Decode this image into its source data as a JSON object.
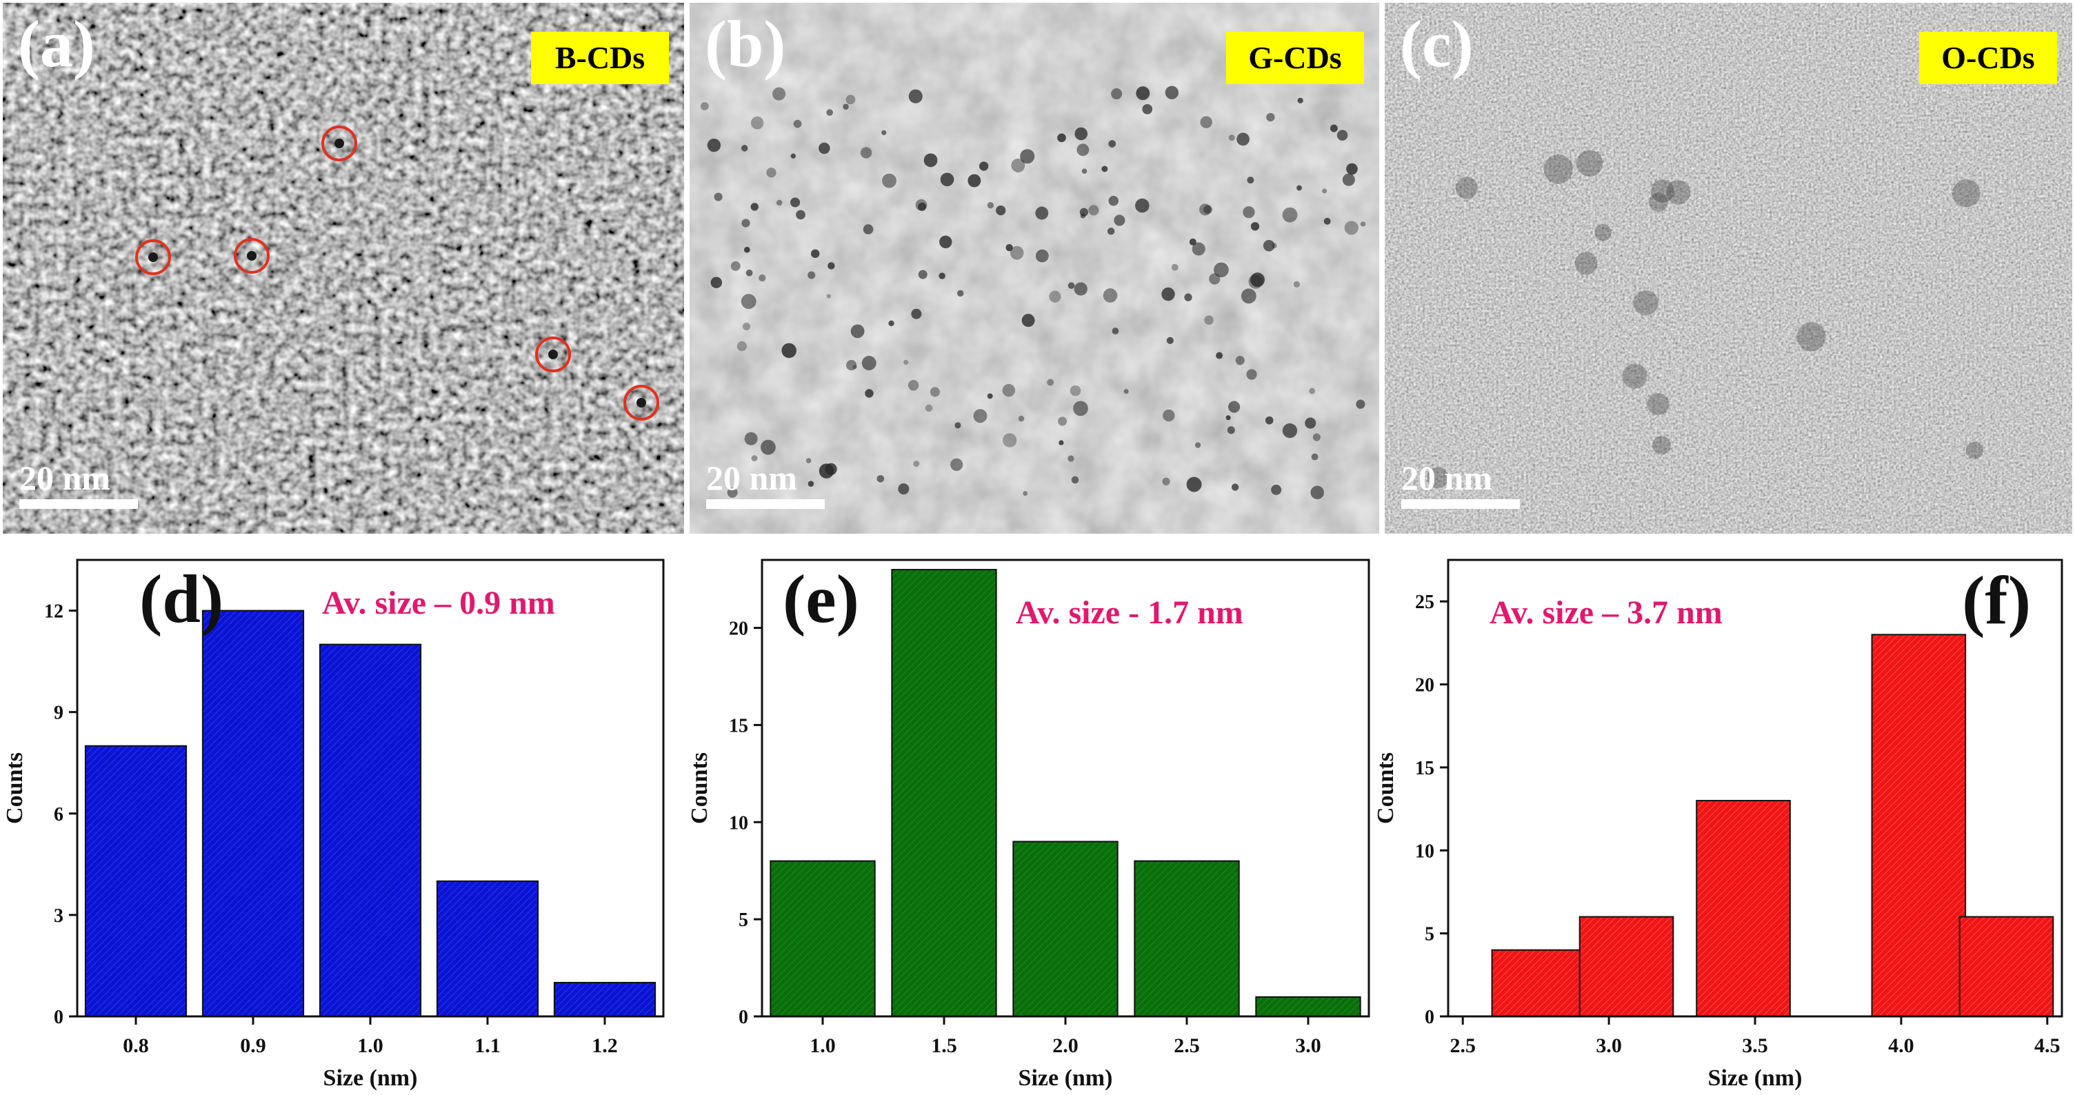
{
  "tem_panels": [
    {
      "letter": "(a)",
      "label": "B-CDs",
      "scalebar": "20 nm",
      "texture": "coarse",
      "dot_color": "#1a1a1a"
    },
    {
      "letter": "(b)",
      "label": "G-CDs",
      "scalebar": "20 nm",
      "texture": "soft",
      "dot_color": "#2a2a2a"
    },
    {
      "letter": "(c)",
      "label": "O-CDs",
      "scalebar": "20 nm",
      "texture": "fine",
      "dot_color": "#3c3c3c"
    }
  ],
  "colors": {
    "label_bg": "#ffff00",
    "circle": "#e0321e",
    "annotation": "#e0196e",
    "blue": "#0a14d2",
    "green": "#0a6e0a",
    "red": "#f01414"
  },
  "chart_data": [
    {
      "type": "bar",
      "panel": "(d)",
      "annotation": "Av. size – 0.9 nm",
      "xlabel": "Size (nm)",
      "ylabel": "Counts",
      "categories": [
        "0.8",
        "0.9",
        "1.0",
        "1.1",
        "1.2"
      ],
      "values": [
        8,
        12,
        11,
        4,
        1
      ],
      "ylim": [
        0,
        13.5
      ],
      "yticks": [
        0,
        3,
        6,
        9,
        12
      ],
      "color_key": "blue"
    },
    {
      "type": "bar",
      "panel": "(e)",
      "annotation": "Av. size - 1.7 nm",
      "xlabel": "Size (nm)",
      "ylabel": "Counts",
      "categories": [
        "1.0",
        "1.5",
        "2.0",
        "2.5",
        "3.0"
      ],
      "values": [
        8,
        23,
        9,
        8,
        1
      ],
      "ylim": [
        0,
        23.5
      ],
      "yticks": [
        0,
        5,
        10,
        15,
        20
      ],
      "color_key": "green"
    },
    {
      "type": "bar",
      "panel": "(f)",
      "annotation": "Av. size – 3.7 nm",
      "xlabel": "Size (nm)",
      "ylabel": "Counts",
      "x_ticks": [
        "2.5",
        "3.0",
        "3.5",
        "4.0",
        "4.5"
      ],
      "bars": [
        {
          "x": 2.6,
          "value": 4
        },
        {
          "x": 2.9,
          "value": 6
        },
        {
          "x": 3.3,
          "value": 13
        },
        {
          "x": 3.9,
          "value": 23
        },
        {
          "x": 4.2,
          "value": 6
        }
      ],
      "xlim": [
        2.45,
        4.55
      ],
      "ylim": [
        0,
        27.5
      ],
      "yticks": [
        0,
        5,
        10,
        15,
        20,
        25
      ],
      "color_key": "red"
    }
  ]
}
